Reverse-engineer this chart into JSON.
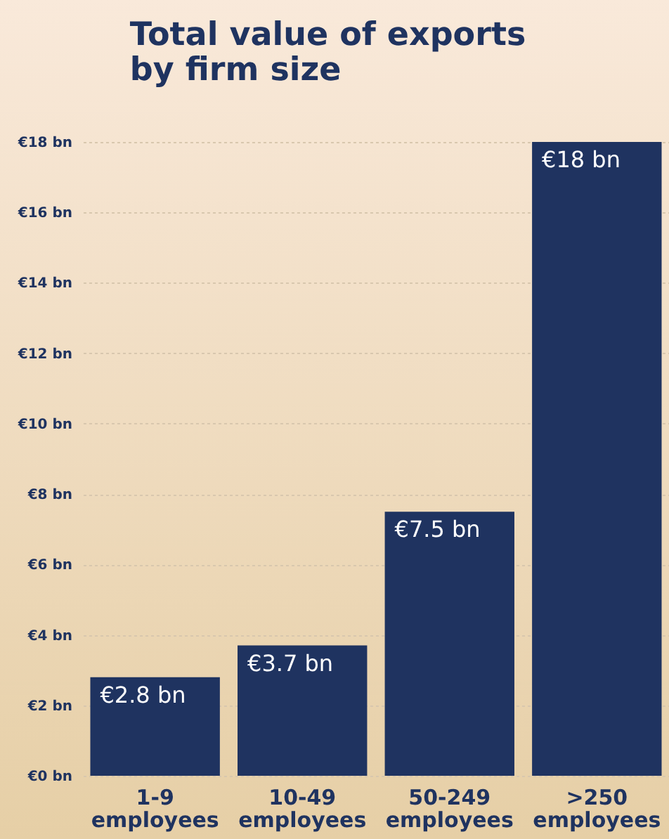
{
  "chart_data": {
    "type": "bar",
    "title": "Total value of exports\nby firm size",
    "categories": [
      "1-9\nemployees",
      "10-49\nemployees",
      "50-249\nemployees",
      ">250\nemployees"
    ],
    "values": [
      2.8,
      3.7,
      7.5,
      18
    ],
    "color": "#1f3360",
    "value_labels": [
      "€2.8 bn",
      "€3.7 bn",
      "€7.5 bn",
      "€18 bn"
    ],
    "ylim": [
      0,
      18
    ],
    "yticks": [
      {
        "value": 0,
        "label": "€0 bn"
      },
      {
        "value": 2,
        "label": "€2 bn"
      },
      {
        "value": 4,
        "label": "€4 bn"
      },
      {
        "value": 6,
        "label": "€6 bn"
      },
      {
        "value": 8,
        "label": "€8 bn"
      },
      {
        "value": 10,
        "label": "€10 bn"
      },
      {
        "value": 12,
        "label": "€12 bn"
      },
      {
        "value": 14,
        "label": "€14 bn"
      },
      {
        "value": 16,
        "label": "€16 bn"
      },
      {
        "value": 18,
        "label": "€18 bn"
      }
    ],
    "grid": "y"
  }
}
